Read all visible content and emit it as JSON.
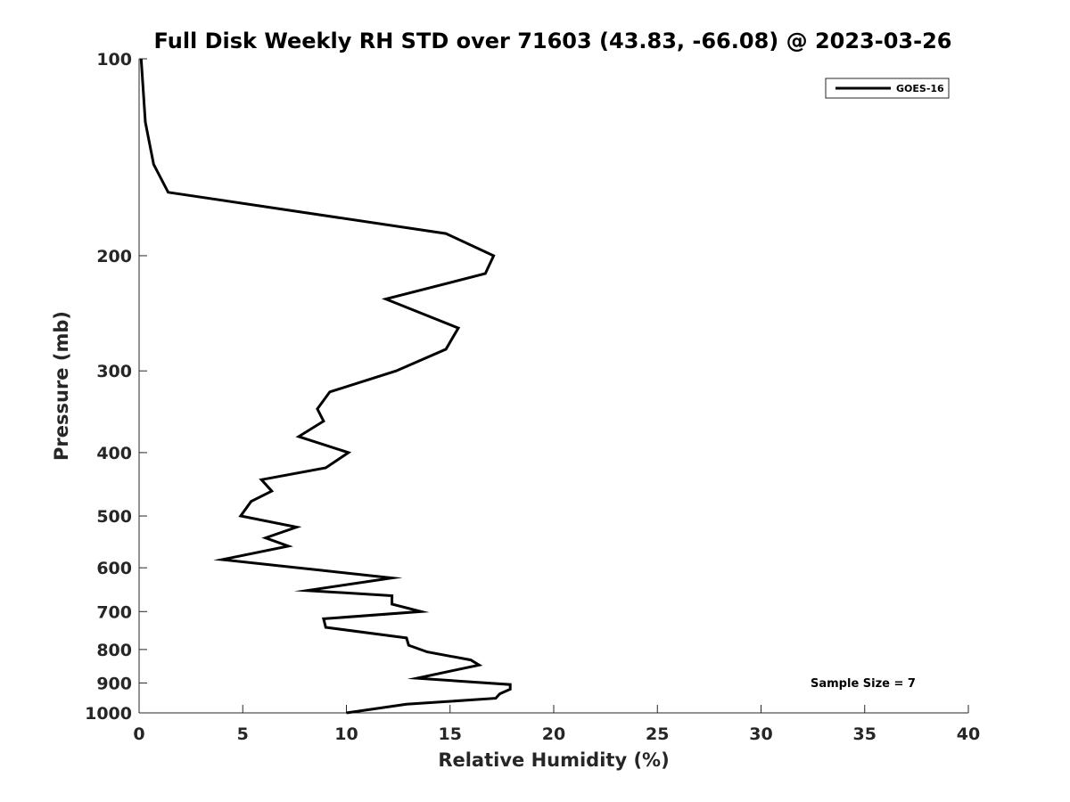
{
  "chart_data": {
    "type": "line",
    "title": "Full Disk Weekly RH STD over 71603 (43.83, -66.08) @ 2023-03-26",
    "xlabel": "Relative Humidity (%)",
    "ylabel": "Pressure (mb)",
    "xlim": [
      0,
      40
    ],
    "ylim": [
      1000,
      100
    ],
    "yscale": "log",
    "grid": false,
    "x_ticks": [
      0,
      5,
      10,
      15,
      20,
      25,
      30,
      35,
      40
    ],
    "x_tick_labels": [
      "0",
      "5",
      "10",
      "15",
      "20",
      "25",
      "30",
      "35",
      "40"
    ],
    "y_ticks": [
      100,
      200,
      300,
      400,
      500,
      600,
      700,
      800,
      900,
      1000
    ],
    "y_tick_labels": [
      "100",
      "200",
      "300",
      "400",
      "500",
      "600",
      "700",
      "800",
      "900",
      "1000"
    ],
    "legend": {
      "position": "top-right",
      "entries": [
        "GOES-16"
      ]
    },
    "annotations": [
      {
        "text": "Sample Size = 7",
        "position": "bottom-right"
      }
    ],
    "series": [
      {
        "name": "GOES-16",
        "color": "#000000",
        "points": [
          {
            "rh": 0.1,
            "p": 100
          },
          {
            "rh": 0.3,
            "p": 125
          },
          {
            "rh": 0.7,
            "p": 145
          },
          {
            "rh": 1.4,
            "p": 160
          },
          {
            "rh": 14.8,
            "p": 185
          },
          {
            "rh": 17.1,
            "p": 200
          },
          {
            "rh": 16.7,
            "p": 213
          },
          {
            "rh": 11.9,
            "p": 233
          },
          {
            "rh": 15.4,
            "p": 258
          },
          {
            "rh": 14.8,
            "p": 278
          },
          {
            "rh": 12.4,
            "p": 300
          },
          {
            "rh": 9.2,
            "p": 323
          },
          {
            "rh": 8.6,
            "p": 343
          },
          {
            "rh": 8.9,
            "p": 358
          },
          {
            "rh": 7.7,
            "p": 378
          },
          {
            "rh": 10.1,
            "p": 400
          },
          {
            "rh": 9.0,
            "p": 422
          },
          {
            "rh": 5.9,
            "p": 440
          },
          {
            "rh": 6.4,
            "p": 458
          },
          {
            "rh": 5.4,
            "p": 475
          },
          {
            "rh": 4.9,
            "p": 500
          },
          {
            "rh": 7.6,
            "p": 520
          },
          {
            "rh": 6.1,
            "p": 540
          },
          {
            "rh": 7.2,
            "p": 556
          },
          {
            "rh": 4.0,
            "p": 583
          },
          {
            "rh": 8.7,
            "p": 605
          },
          {
            "rh": 12.2,
            "p": 622
          },
          {
            "rh": 8.1,
            "p": 650
          },
          {
            "rh": 12.2,
            "p": 662
          },
          {
            "rh": 12.2,
            "p": 682
          },
          {
            "rh": 13.6,
            "p": 700
          },
          {
            "rh": 8.9,
            "p": 718
          },
          {
            "rh": 9.0,
            "p": 740
          },
          {
            "rh": 12.9,
            "p": 768
          },
          {
            "rh": 13.0,
            "p": 788
          },
          {
            "rh": 13.9,
            "p": 807
          },
          {
            "rh": 16.0,
            "p": 830
          },
          {
            "rh": 16.4,
            "p": 845
          },
          {
            "rh": 15.1,
            "p": 862
          },
          {
            "rh": 13.4,
            "p": 885
          },
          {
            "rh": 17.9,
            "p": 905
          },
          {
            "rh": 17.9,
            "p": 920
          },
          {
            "rh": 17.4,
            "p": 935
          },
          {
            "rh": 17.2,
            "p": 950
          },
          {
            "rh": 12.9,
            "p": 970
          },
          {
            "rh": 10.0,
            "p": 1000
          }
        ]
      }
    ]
  }
}
